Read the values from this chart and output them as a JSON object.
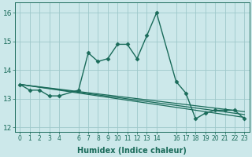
{
  "xlabel": "Humidex (Indice chaleur)",
  "background_color": "#cce8ea",
  "grid_color": "#9ec8ca",
  "line_color": "#1a6b5a",
  "xlim": [
    -0.5,
    23.5
  ],
  "ylim": [
    11.85,
    16.35
  ],
  "yticks": [
    12,
    13,
    14,
    15,
    16
  ],
  "xticks": [
    0,
    1,
    2,
    3,
    4,
    6,
    7,
    8,
    9,
    10,
    11,
    12,
    13,
    14,
    16,
    17,
    18,
    19,
    20,
    21,
    22,
    23
  ],
  "series": [
    {
      "x": [
        0,
        1,
        2,
        3,
        4,
        6,
        7,
        8,
        9,
        10,
        11,
        12,
        13,
        14,
        16,
        17,
        18,
        19,
        20,
        21,
        22,
        23
      ],
      "y": [
        13.5,
        13.3,
        13.3,
        13.1,
        13.1,
        13.3,
        14.6,
        14.3,
        14.4,
        14.9,
        14.9,
        14.4,
        15.2,
        16.0,
        13.6,
        13.2,
        12.3,
        12.5,
        12.6,
        12.6,
        12.6,
        12.3
      ],
      "marker": "D",
      "markersize": 2.5,
      "linewidth": 1.0
    },
    {
      "x": [
        0,
        23
      ],
      "y": [
        13.5,
        12.55
      ],
      "marker": null,
      "linewidth": 0.9
    },
    {
      "x": [
        0,
        23
      ],
      "y": [
        13.5,
        12.45
      ],
      "marker": null,
      "linewidth": 0.9
    },
    {
      "x": [
        0,
        23
      ],
      "y": [
        13.5,
        12.35
      ],
      "marker": null,
      "linewidth": 0.9
    }
  ]
}
